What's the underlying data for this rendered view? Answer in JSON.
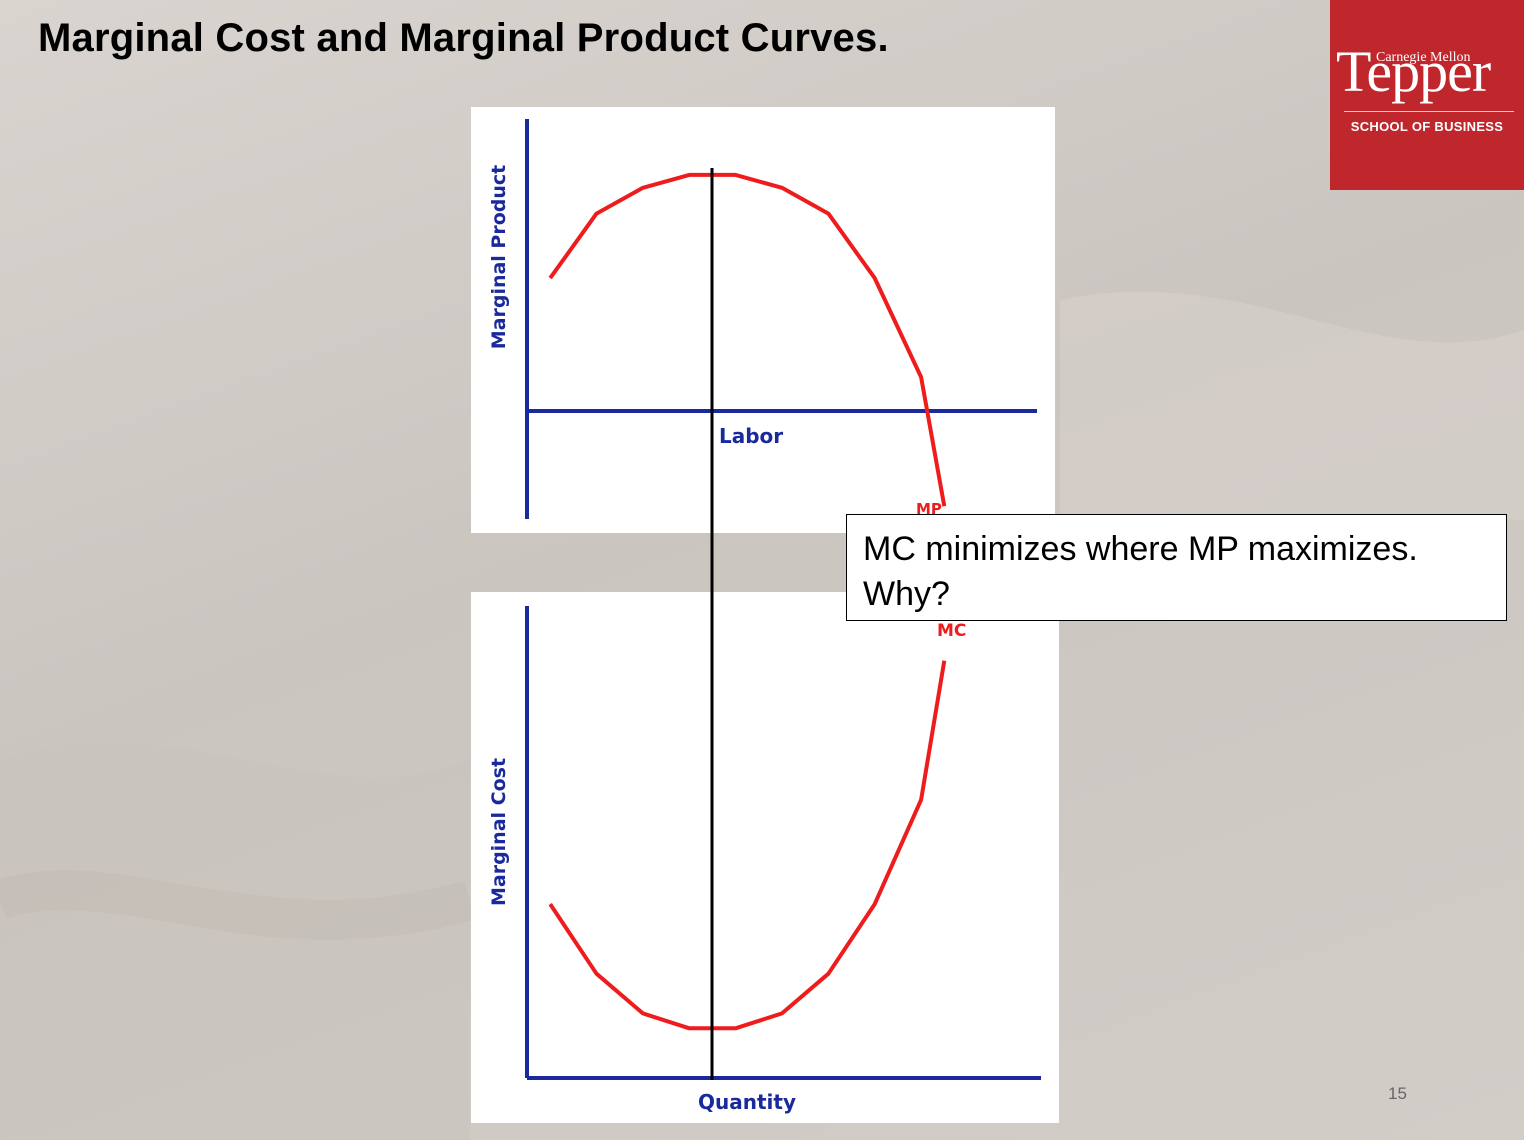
{
  "slide": {
    "title": "Marginal Cost and Marginal Product Curves.",
    "page_number": "15",
    "callout_line1": "MC minimizes where MP maximizes.",
    "callout_line2": "Why?"
  },
  "logo": {
    "top_text": "Carnegie Mellon",
    "main_text": "Tepper",
    "sub_text": "SCHOOL OF BUSINESS",
    "color": "#c0272d"
  },
  "colors": {
    "axis": "#1a2a9c",
    "curve": "#ee1c1c",
    "guide_line": "#000000"
  },
  "chart_data": [
    {
      "type": "line",
      "title": "",
      "ylabel": "Marginal Product",
      "xlabel": "Labor",
      "series": [
        {
          "name": "MP",
          "x": [
            0.5,
            1.5,
            2.5,
            3.5,
            4.5,
            5.5,
            6.5,
            7.5,
            8.5,
            9.0
          ],
          "y": [
            3.1,
            4.6,
            5.2,
            5.5,
            5.5,
            5.2,
            4.6,
            3.1,
            0.8,
            -2.2
          ]
        }
      ],
      "xlim": [
        0,
        11
      ],
      "ylim": [
        -2.5,
        6.8
      ],
      "grid": false
    },
    {
      "type": "line",
      "title": "",
      "ylabel": "Marginal Cost",
      "xlabel": "Quantity",
      "series": [
        {
          "name": "MC",
          "x": [
            0.5,
            1.5,
            2.5,
            3.5,
            4.5,
            5.5,
            6.5,
            7.5,
            8.5,
            9.0
          ],
          "y": [
            3.5,
            2.1,
            1.3,
            1.0,
            1.0,
            1.3,
            2.1,
            3.5,
            5.6,
            8.4
          ]
        }
      ],
      "xlim": [
        0,
        11
      ],
      "ylim": [
        0,
        9.5
      ],
      "grid": false
    }
  ]
}
